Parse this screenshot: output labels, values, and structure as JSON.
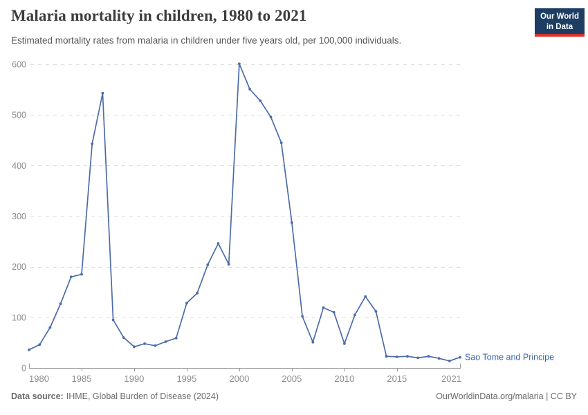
{
  "logo": {
    "line1": "Our World",
    "line2": "in Data"
  },
  "chart_data": {
    "type": "line",
    "title": "Malaria mortality in children, 1980 to 2021",
    "subtitle": "Estimated mortality rates from malaria in children under five years old, per 100,000 individuals.",
    "xlabel": "",
    "ylabel": "",
    "ylim": [
      0,
      600
    ],
    "xlim": [
      1980,
      2021
    ],
    "yticks": [
      0,
      100,
      200,
      300,
      400,
      500,
      600
    ],
    "xticks": [
      1980,
      1985,
      1990,
      1995,
      2000,
      2005,
      2010,
      2015,
      2021
    ],
    "grid": "horizontal-dashed",
    "legend_position": "line-end-label",
    "series": [
      {
        "name": "Sao Tome and Principe",
        "x": [
          1980,
          1981,
          1982,
          1983,
          1984,
          1985,
          1986,
          1987,
          1988,
          1989,
          1990,
          1991,
          1992,
          1993,
          1994,
          1995,
          1996,
          1997,
          1998,
          1999,
          2000,
          2001,
          2002,
          2003,
          2004,
          2005,
          2006,
          2007,
          2008,
          2009,
          2010,
          2011,
          2012,
          2013,
          2014,
          2015,
          2016,
          2017,
          2018,
          2019,
          2020,
          2021
        ],
        "values": [
          36,
          46,
          80,
          127,
          180,
          185,
          443,
          543,
          95,
          60,
          42,
          48,
          44,
          52,
          59,
          128,
          148,
          204,
          246,
          205,
          601,
          551,
          528,
          496,
          445,
          287,
          102,
          51,
          119,
          110,
          48,
          105,
          141,
          112,
          23,
          22,
          23,
          20,
          23,
          19,
          14,
          21
        ]
      }
    ],
    "colors": {
      "line": "#4C6CA9",
      "entity_label": "#3A63A5",
      "gridline": "#DDDDDD",
      "axis": "#9A9A9A",
      "tick_label": "#8C8C8C"
    }
  },
  "footer": {
    "source_label": "Data source:",
    "source_value": "IHME, Global Burden of Disease (2024)",
    "link": "OurWorldinData.org/malaria | CC BY"
  }
}
